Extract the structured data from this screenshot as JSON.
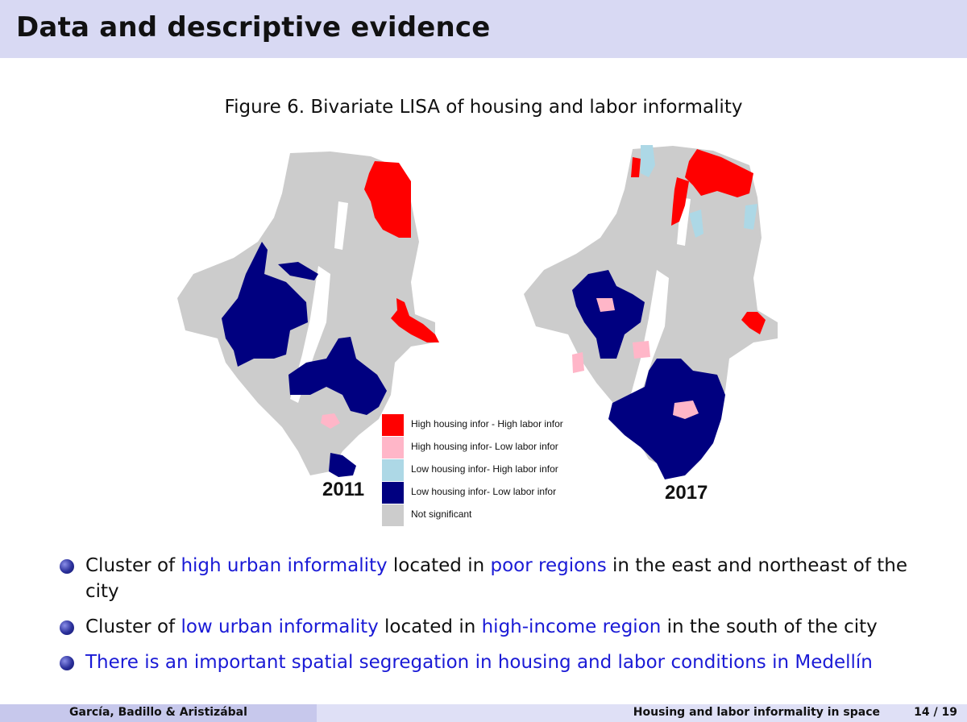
{
  "slide": {
    "title": "Data and descriptive evidence",
    "figure_caption": "Figure 6. Bivariate LISA of housing and labor informality"
  },
  "maps": {
    "left_year": "2011",
    "right_year": "2017"
  },
  "legend": [
    {
      "label": "High housing infor - High labor infor",
      "color": "#ff0000"
    },
    {
      "label": "High housing infor- Low labor infor",
      "color": "#ffb6c8"
    },
    {
      "label": "Low housing infor- High labor infor",
      "color": "#add8e6"
    },
    {
      "label": "Low housing infor- Low labor infor",
      "color": "#000080"
    },
    {
      "label": "Not significant",
      "color": "#cccccc"
    }
  ],
  "bullets": [
    {
      "p1": "Cluster of ",
      "h1": "high urban informality",
      "p2": " located in ",
      "h2": "poor regions",
      "p3": " in the east and northeast of the city"
    },
    {
      "p1": "Cluster of ",
      "h1": "low urban informality",
      "p2": " located in ",
      "h2": "high-income region",
      "p3": " in the south of the city"
    },
    {
      "full": "There is an important spatial segregation in housing and labor conditions in Medellín"
    }
  ],
  "footer": {
    "authors": "García, Badillo & Aristizábal",
    "short_title": "Housing and labor informality in space",
    "page": "14 / 19"
  }
}
